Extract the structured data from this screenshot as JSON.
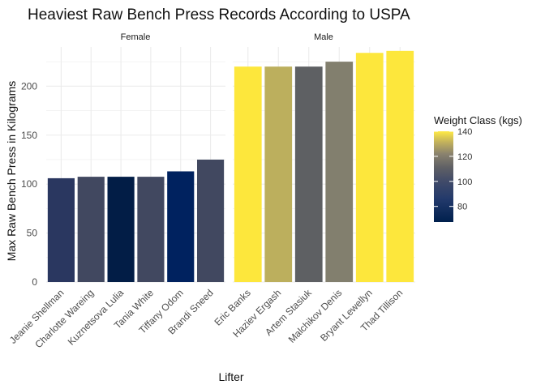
{
  "chart_data": {
    "type": "bar",
    "title": "Heaviest Raw Bench Press Records According to USPA",
    "xlabel": "Lifter",
    "ylabel": "Max Raw Bench Press in Kilograms",
    "ylim": [
      0,
      240
    ],
    "yticks": [
      0,
      50,
      100,
      150,
      200
    ],
    "grid": true,
    "legend": {
      "title": "Weight Class (kgs)",
      "position": "right",
      "range": [
        67.5,
        140
      ],
      "ticks": [
        80,
        100,
        120,
        140
      ],
      "low_color": "#00204d",
      "high_color": "#ffea46"
    },
    "panels": [
      {
        "label": "Female",
        "bars": [
          {
            "lifter": "Jeanie Shellman",
            "value": 106,
            "weight_class": 90,
            "color": "#2a3760"
          },
          {
            "lifter": "Charlotte  Wareing",
            "value": 107.5,
            "weight_class": 100,
            "color": "#414860"
          },
          {
            "lifter": "Kuznetsova Lulia",
            "value": 107.5,
            "weight_class": 72,
            "color": "#021d46"
          },
          {
            "lifter": "Tania White",
            "value": 107.5,
            "weight_class": 100,
            "color": "#414860"
          },
          {
            "lifter": "Tiffany Odom",
            "value": 113,
            "weight_class": 67.5,
            "color": "#00225f"
          },
          {
            "lifter": "Brandi Sneed",
            "value": 125,
            "weight_class": 100,
            "color": "#414860"
          }
        ]
      },
      {
        "label": "Male",
        "bars": [
          {
            "lifter": "Eric Banks",
            "value": 220,
            "weight_class": 140,
            "color": "#fde73c"
          },
          {
            "lifter": "Haziev Ergash",
            "value": 220,
            "weight_class": 130,
            "color": "#bcaf5d"
          },
          {
            "lifter": "Artem Stasiuk",
            "value": 220,
            "weight_class": 110,
            "color": "#5e6063"
          },
          {
            "lifter": "Malchikov Denis",
            "value": 225,
            "weight_class": 120,
            "color": "#827f6e"
          },
          {
            "lifter": "Bryant Lewellyn",
            "value": 234,
            "weight_class": 140,
            "color": "#fde73c"
          },
          {
            "lifter": "Thad Tillison",
            "value": 236,
            "weight_class": 140,
            "color": "#fde73c"
          }
        ]
      }
    ]
  }
}
